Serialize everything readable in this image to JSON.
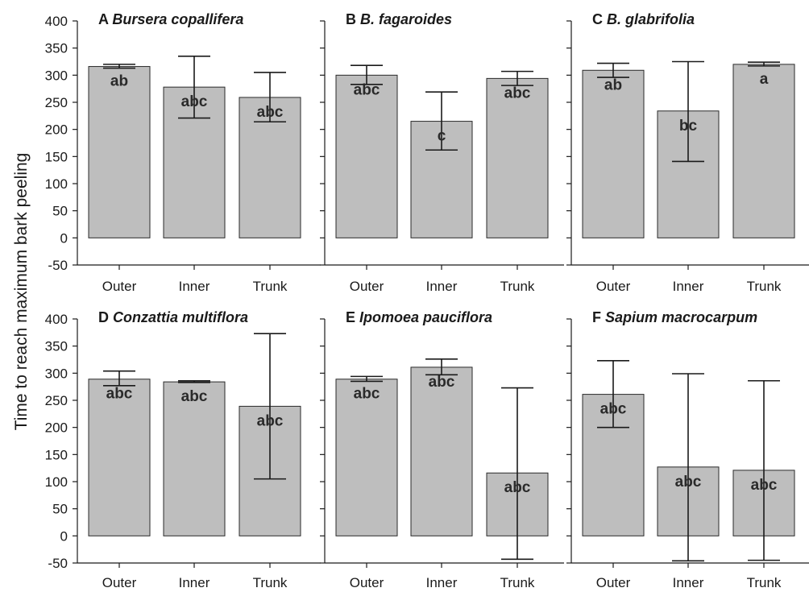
{
  "figure": {
    "ylabel": "Time to reach maximum bark peeling"
  },
  "colors": {
    "bar_fill": "#bebebe",
    "bar_stroke": "#2a2a2a",
    "axis": "#1a1a1a"
  },
  "chart_data": [
    {
      "type": "bar",
      "panel": "A",
      "title": "Bursera copallifera",
      "categories": [
        "Outer",
        "Inner",
        "Trunk"
      ],
      "values": [
        316,
        278,
        259
      ],
      "errors": [
        [
          313,
          320
        ],
        [
          221,
          335
        ],
        [
          214,
          305
        ]
      ],
      "labels": [
        "ab",
        "abc",
        "abc"
      ],
      "ylim": [
        -50,
        400
      ],
      "yticks": [
        -50,
        0,
        50,
        100,
        150,
        200,
        250,
        300,
        350,
        400
      ]
    },
    {
      "type": "bar",
      "panel": "B",
      "title": "B. fagaroides",
      "categories": [
        "Outer",
        "Inner",
        "Trunk"
      ],
      "values": [
        300,
        215,
        294
      ],
      "errors": [
        [
          283,
          318
        ],
        [
          162,
          269
        ],
        [
          281,
          307
        ]
      ],
      "labels": [
        "abc",
        "c",
        "abc"
      ],
      "ylim": [
        -50,
        400
      ],
      "yticks": [
        -50,
        0,
        50,
        100,
        150,
        200,
        250,
        300,
        350,
        400
      ]
    },
    {
      "type": "bar",
      "panel": "C",
      "title": "B. glabrifolia",
      "categories": [
        "Outer",
        "Inner",
        "Trunk"
      ],
      "values": [
        309,
        234,
        320
      ],
      "errors": [
        [
          296,
          322
        ],
        [
          141,
          325
        ],
        [
          317,
          324
        ]
      ],
      "labels": [
        "ab",
        "bc",
        "a"
      ],
      "ylim": [
        -50,
        400
      ],
      "yticks": [
        -50,
        0,
        50,
        100,
        150,
        200,
        250,
        300,
        350,
        400
      ]
    },
    {
      "type": "bar",
      "panel": "D",
      "title": "Conzattia multiflora",
      "categories": [
        "Outer",
        "Inner",
        "Trunk"
      ],
      "values": [
        289,
        284,
        239
      ],
      "errors": [
        [
          277,
          304
        ],
        [
          283,
          286
        ],
        [
          105,
          373
        ]
      ],
      "labels": [
        "abc",
        "abc",
        "abc"
      ],
      "ylim": [
        -50,
        400
      ],
      "yticks": [
        -50,
        0,
        50,
        100,
        150,
        200,
        250,
        300,
        350,
        400
      ]
    },
    {
      "type": "bar",
      "panel": "E",
      "title": "Ipomoea pauciflora",
      "categories": [
        "Outer",
        "Inner",
        "Trunk"
      ],
      "values": [
        289,
        311,
        116
      ],
      "errors": [
        [
          285,
          294
        ],
        [
          297,
          326
        ],
        [
          -43,
          273
        ]
      ],
      "labels": [
        "abc",
        "abc",
        "abc"
      ],
      "ylim": [
        -50,
        400
      ],
      "yticks": [
        -50,
        0,
        50,
        100,
        150,
        200,
        250,
        300,
        350,
        400
      ]
    },
    {
      "type": "bar",
      "panel": "F",
      "title": "Sapium macrocarpum",
      "categories": [
        "Outer",
        "Inner",
        "Trunk"
      ],
      "values": [
        261,
        127,
        121
      ],
      "errors": [
        [
          200,
          323
        ],
        [
          -46,
          299
        ],
        [
          -45,
          286
        ]
      ],
      "labels": [
        "abc",
        "abc",
        "abc"
      ],
      "ylim": [
        -50,
        400
      ],
      "yticks": [
        -50,
        0,
        50,
        100,
        150,
        200,
        250,
        300,
        350,
        400
      ]
    }
  ]
}
